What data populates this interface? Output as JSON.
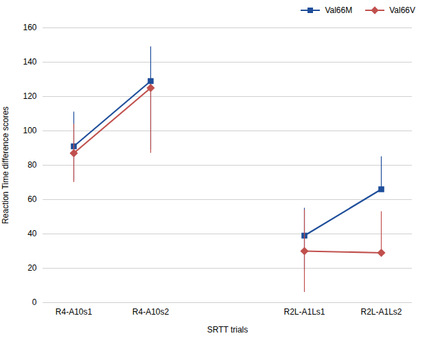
{
  "chart_data": {
    "type": "line",
    "categories": [
      "R4-A10s1",
      "R4-A10s2",
      null,
      "R2L-A1Ls1",
      "R2L-A1Ls2"
    ],
    "series": [
      {
        "name": "Val66M",
        "color": "#1F4E9A",
        "marker": "square",
        "values": [
          91,
          129,
          null,
          39,
          66
        ],
        "error_lower": [
          20,
          40,
          null,
          20,
          0
        ],
        "error_upper": [
          20,
          20,
          null,
          16,
          19
        ]
      },
      {
        "name": "Val66V",
        "color": "#C0504D",
        "marker": "diamond",
        "values": [
          87,
          125,
          null,
          30,
          29
        ],
        "error_lower": [
          17,
          38,
          null,
          24,
          0
        ],
        "error_upper": [
          17,
          0,
          null,
          24,
          24
        ]
      }
    ],
    "xlabel": "SRTT trials",
    "ylabel": "Reaction Time difference scores",
    "ylim": [
      0,
      160
    ],
    "yticks": [
      0,
      20,
      40,
      60,
      80,
      100,
      120,
      140,
      160
    ],
    "grid": true,
    "legend": "right"
  }
}
